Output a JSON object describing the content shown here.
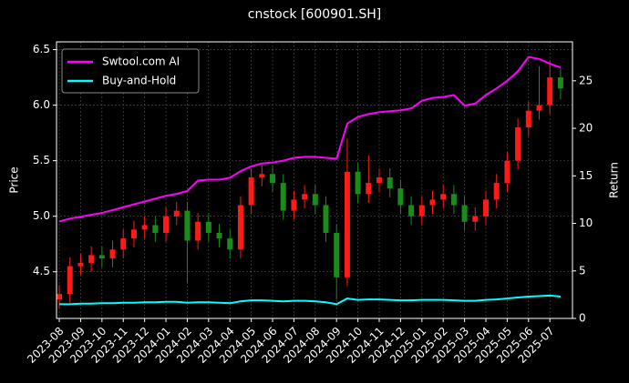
{
  "chart_data": {
    "type": "candlestick",
    "title": "cnstock [600901.SH]",
    "ylabel": "Price",
    "y2label": "Return",
    "x": [
      0,
      0.5,
      1,
      1.5,
      2,
      2.5,
      3,
      3.5,
      4,
      4.5,
      5,
      5.5,
      6,
      6.5,
      7,
      7.5,
      8,
      8.5,
      9,
      9.5,
      10,
      10.5,
      11,
      11.5,
      12,
      12.5,
      13,
      13.5,
      14,
      14.5,
      15,
      15.5,
      16,
      16.5,
      17,
      17.5,
      18,
      18.5,
      19,
      19.5,
      20,
      20.5,
      21,
      21.5,
      22,
      22.5,
      23,
      23.5
    ],
    "open": [
      4.25,
      4.3,
      4.55,
      4.58,
      4.65,
      4.62,
      4.7,
      4.8,
      4.88,
      4.92,
      4.85,
      5.0,
      5.05,
      4.78,
      4.95,
      4.85,
      4.8,
      4.7,
      5.1,
      5.35,
      5.38,
      5.3,
      5.05,
      5.15,
      5.2,
      5.1,
      4.85,
      4.45,
      5.4,
      5.2,
      5.3,
      5.35,
      5.25,
      5.1,
      5.0,
      5.1,
      5.15,
      5.2,
      5.1,
      4.95,
      5.0,
      5.15,
      5.3,
      5.5,
      5.8,
      5.95,
      6.0,
      6.25
    ],
    "close": [
      4.3,
      4.55,
      4.58,
      4.65,
      4.62,
      4.7,
      4.8,
      4.88,
      4.92,
      4.85,
      5.0,
      5.05,
      4.78,
      4.95,
      4.85,
      4.8,
      4.7,
      5.1,
      5.35,
      5.38,
      5.3,
      5.05,
      5.15,
      5.2,
      5.1,
      4.85,
      4.45,
      5.4,
      5.2,
      5.3,
      5.35,
      5.25,
      5.1,
      5.0,
      5.1,
      5.15,
      5.2,
      5.1,
      4.95,
      5.0,
      5.15,
      5.3,
      5.5,
      5.8,
      5.95,
      6.0,
      6.25,
      6.15
    ],
    "high": [
      4.38,
      4.63,
      4.66,
      4.73,
      4.73,
      4.78,
      4.88,
      4.96,
      5.0,
      5.0,
      5.08,
      5.13,
      5.13,
      5.03,
      5.03,
      4.93,
      4.88,
      5.18,
      5.43,
      5.46,
      5.46,
      5.38,
      5.23,
      5.28,
      5.28,
      5.18,
      4.93,
      5.7,
      5.48,
      5.55,
      5.43,
      5.43,
      5.33,
      5.18,
      5.18,
      5.23,
      5.28,
      5.28,
      5.18,
      5.08,
      5.23,
      5.38,
      5.58,
      5.88,
      6.03,
      6.35,
      6.4,
      6.33
    ],
    "low": [
      4.17,
      4.22,
      4.47,
      4.5,
      4.54,
      4.54,
      4.62,
      4.72,
      4.8,
      4.77,
      4.77,
      4.92,
      4.4,
      4.7,
      4.77,
      4.72,
      4.62,
      4.62,
      5.02,
      5.27,
      5.22,
      4.97,
      4.97,
      5.07,
      5.02,
      4.77,
      4.25,
      4.37,
      5.12,
      5.12,
      5.22,
      5.17,
      5.02,
      4.92,
      4.92,
      5.02,
      5.07,
      5.02,
      4.87,
      4.87,
      4.92,
      5.07,
      5.22,
      5.42,
      5.72,
      5.87,
      5.92,
      6.05
    ],
    "up_color": "#ff1a1a",
    "down_color": "#1a8c1a",
    "series": [
      {
        "name": "Swtool.com AI",
        "color": "#ff00ff",
        "axis": "y2",
        "values": [
          10.2,
          10.5,
          10.7,
          10.9,
          11.1,
          11.4,
          11.7,
          12.0,
          12.3,
          12.6,
          12.9,
          13.1,
          13.4,
          14.5,
          14.6,
          14.6,
          14.8,
          15.5,
          16.0,
          16.3,
          16.4,
          16.6,
          16.9,
          17.0,
          17.0,
          16.9,
          16.8,
          20.5,
          21.2,
          21.5,
          21.7,
          21.8,
          21.9,
          22.1,
          22.9,
          23.2,
          23.3,
          23.5,
          22.4,
          22.6,
          23.5,
          24.2,
          25.0,
          26.0,
          27.5,
          27.3,
          26.8,
          26.4
        ]
      },
      {
        "name": "Buy-and-Hold",
        "color": "#00ffff",
        "axis": "y2",
        "values": [
          1.5,
          1.5,
          1.55,
          1.55,
          1.6,
          1.6,
          1.65,
          1.65,
          1.7,
          1.7,
          1.75,
          1.75,
          1.65,
          1.7,
          1.7,
          1.65,
          1.6,
          1.8,
          1.9,
          1.9,
          1.85,
          1.8,
          1.85,
          1.85,
          1.8,
          1.7,
          1.5,
          2.1,
          1.95,
          2.0,
          2.0,
          1.95,
          1.9,
          1.9,
          1.95,
          1.95,
          1.95,
          1.9,
          1.85,
          1.85,
          1.95,
          2.0,
          2.1,
          2.2,
          2.3,
          2.35,
          2.4,
          2.3
        ]
      }
    ],
    "xlim": [
      -0.13,
      24.06
    ],
    "xticks": [
      {
        "value": 0,
        "label": "2023-08"
      },
      {
        "value": 1,
        "label": "2023-09"
      },
      {
        "value": 2,
        "label": "2023-10"
      },
      {
        "value": 3,
        "label": "2023-11"
      },
      {
        "value": 4,
        "label": "2023-12"
      },
      {
        "value": 5,
        "label": "2024-01"
      },
      {
        "value": 6,
        "label": "2024-02"
      },
      {
        "value": 7,
        "label": "2024-03"
      },
      {
        "value": 8,
        "label": "2024-04"
      },
      {
        "value": 9,
        "label": "2024-05"
      },
      {
        "value": 10,
        "label": "2024-06"
      },
      {
        "value": 11,
        "label": "2024-07"
      },
      {
        "value": 12,
        "label": "2024-08"
      },
      {
        "value": 13,
        "label": "2024-09"
      },
      {
        "value": 14,
        "label": "2024-10"
      },
      {
        "value": 15,
        "label": "2024-11"
      },
      {
        "value": 16,
        "label": "2024-12"
      },
      {
        "value": 17,
        "label": "2025-01"
      },
      {
        "value": 18,
        "label": "2025-02"
      },
      {
        "value": 19,
        "label": "2025-03"
      },
      {
        "value": 20,
        "label": "2025-04"
      },
      {
        "value": 21,
        "label": "2025-05"
      },
      {
        "value": 22,
        "label": "2025-06"
      },
      {
        "value": 23,
        "label": "2025-07"
      }
    ],
    "ylim": [
      4.08,
      6.57
    ],
    "yticks": [
      4.5,
      {
        "value": 5,
        "label": "5.0"
      },
      5.5,
      {
        "value": 6,
        "label": "6.0"
      },
      6.5
    ],
    "y2lim": [
      0,
      29.1
    ],
    "y2ticks": [
      0,
      5,
      10,
      15,
      20,
      25
    ],
    "grid": true,
    "legend": "upper-left"
  }
}
